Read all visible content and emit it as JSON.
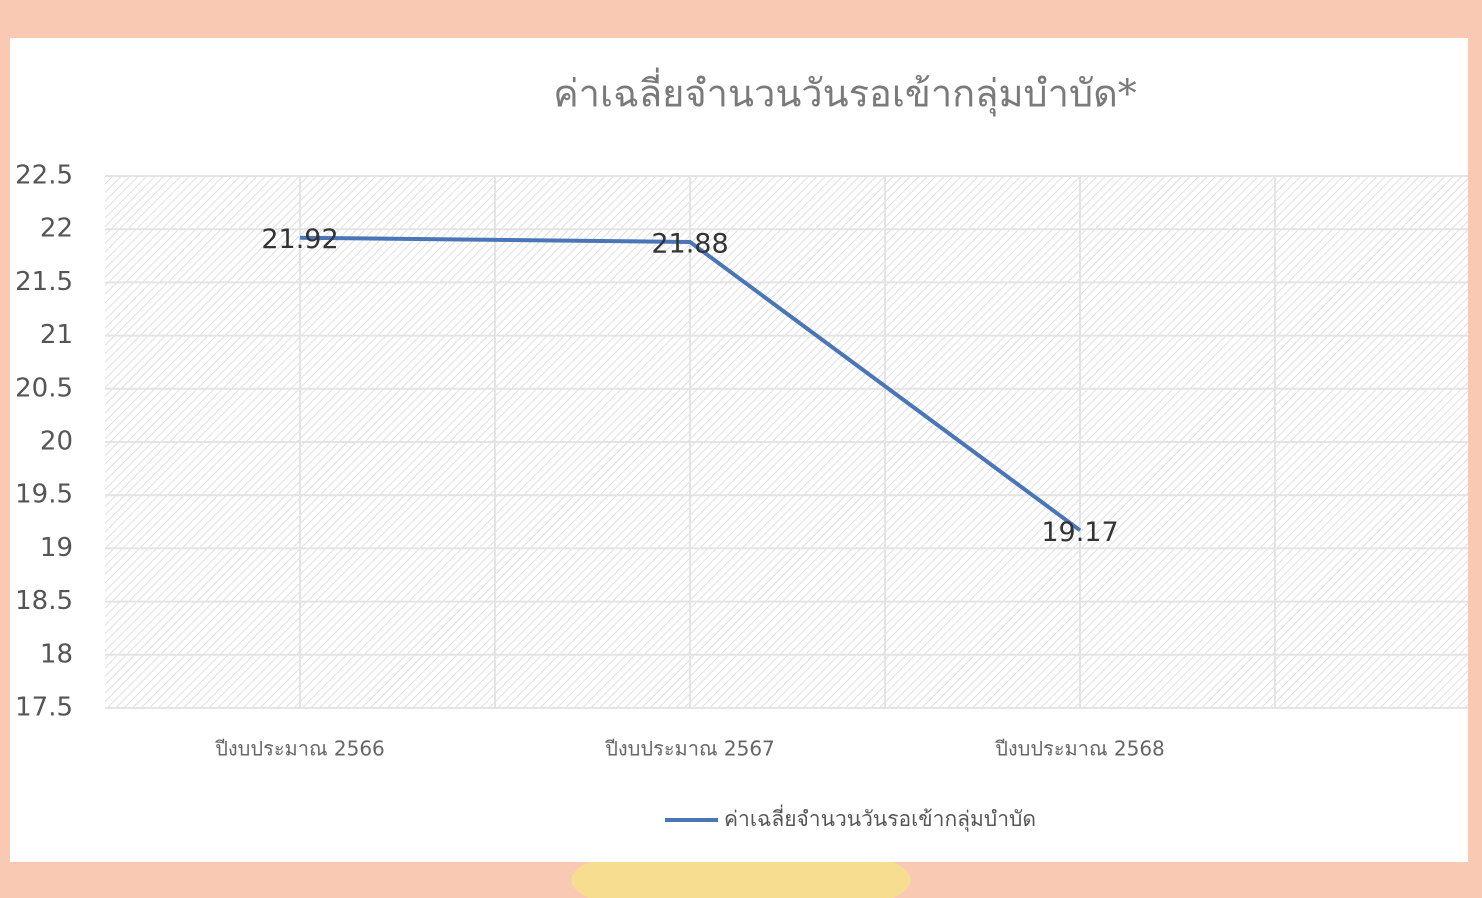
{
  "chart_data": {
    "type": "line",
    "title": "ค่าเฉลี่ยจำนวนวันรอเข้ากลุ่มบำบัด*",
    "categories": [
      "ปีงบประมาณ 2566",
      "ปีงบประมาณ 2567",
      "ปีงบประมาณ 2568"
    ],
    "series": [
      {
        "name": "ค่าเฉลี่ยจำนวนวันรอเข้ากลุ่มบำบัด",
        "color": "#4a76b8",
        "values": [
          21.92,
          21.88,
          19.17
        ]
      }
    ],
    "ylim": [
      17.5,
      22.5
    ],
    "yticks": [
      17.5,
      18,
      18.5,
      19,
      19.5,
      20,
      20.5,
      21,
      21.5,
      22,
      22.5
    ],
    "grid": true,
    "legend": "bottom"
  }
}
